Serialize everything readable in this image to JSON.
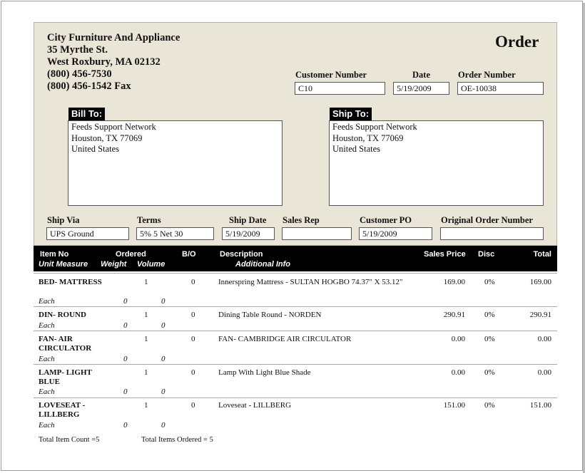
{
  "company": {
    "name": "City Furniture And Appliance",
    "street": "35 Myrthe St.",
    "city_line": "West Roxbury,  MA 02132",
    "phone": "(800) 456-7530",
    "fax": "(800) 456-1542 Fax"
  },
  "doc_title": "Order",
  "labels": {
    "customer_number": "Customer Number",
    "date": "Date",
    "order_number": "Order Number",
    "bill_to": "Bill To:",
    "ship_to": "Ship To:",
    "ship_via": "Ship Via",
    "terms": "Terms",
    "ship_date": "Ship Date",
    "sales_rep": "Sales Rep",
    "customer_po": "Customer PO",
    "original_order_number": "Original Order Number"
  },
  "values": {
    "customer_number": "C10",
    "date": "5/19/2009",
    "order_number": "OE-10038",
    "ship_via": "UPS Ground",
    "terms": "5% 5 Net 30",
    "ship_date": "5/19/2009",
    "sales_rep": "",
    "customer_po": "5/19/2009",
    "original_order_number": ""
  },
  "bill_to": [
    "Feeds Support Network",
    "Houston,  TX  77069",
    "United States"
  ],
  "ship_to": [
    "Feeds Support Network",
    "Houston,  TX  77069",
    "United States"
  ],
  "columns": {
    "item_no": "Item No",
    "ordered": "Ordered",
    "bo": "B/O",
    "description": "Description",
    "sales_price": "Sales Price",
    "disc": "Disc",
    "total": "Total",
    "unit_measure": "Unit Measure",
    "weight": "Weight",
    "volume": "Volume",
    "additional_info": "Additional Info"
  },
  "items": [
    {
      "item_no": "BED- MATTRESS",
      "ordered": "1",
      "bo": "0",
      "description": "Innerspring Mattress - SULTAN HOGBO 74.37\" X 53.12\"",
      "price": "169.00",
      "disc": "0%",
      "total": "169.00",
      "unit": "Each",
      "weight": "0",
      "volume": "0"
    },
    {
      "item_no": "DIN- ROUND",
      "ordered": "1",
      "bo": "0",
      "description": "Dining Table Round - NORDEN",
      "price": "290.91",
      "disc": "0%",
      "total": "290.91",
      "unit": "Each",
      "weight": "0",
      "volume": "0"
    },
    {
      "item_no": "FAN- AIR CIRCULATOR",
      "ordered": "1",
      "bo": "0",
      "description": "FAN- CAMBRIDGE AIR CIRCULATOR",
      "price": "0.00",
      "disc": "0%",
      "total": "0.00",
      "unit": "Each",
      "weight": "0",
      "volume": "0"
    },
    {
      "item_no": "LAMP- LIGHT BLUE",
      "ordered": "1",
      "bo": "0",
      "description": "Lamp With Light Blue Shade",
      "price": "0.00",
      "disc": "0%",
      "total": "0.00",
      "unit": "Each",
      "weight": "0",
      "volume": "0"
    },
    {
      "item_no": "LOVESEAT - LILLBERG",
      "ordered": "1",
      "bo": "0",
      "description": "Loveseat - LILLBERG",
      "price": "151.00",
      "disc": "0%",
      "total": "151.00",
      "unit": "Each",
      "weight": "0",
      "volume": "0"
    }
  ],
  "footer": {
    "total_item_count": "Total Item Count =5",
    "total_items_ordered": "Total Items Ordered = 5"
  }
}
